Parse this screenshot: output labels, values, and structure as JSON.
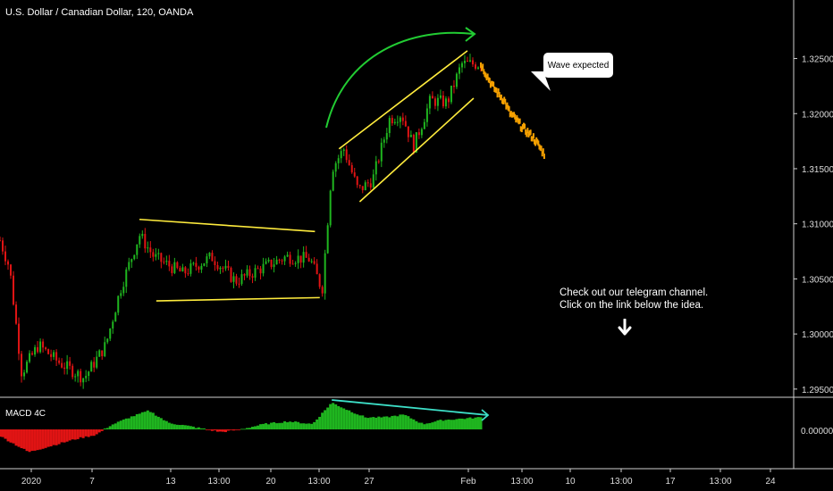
{
  "header": {
    "symbol_title": "U.S. Dollar / Canadian Dollar, 120, OANDA"
  },
  "macd": {
    "label": "MACD 4C",
    "zero_label": "0.00000"
  },
  "annotations": {
    "callout_text": "Wave expected",
    "telegram_line1": "Check out our telegram channel.",
    "telegram_line2": "Click on the link below the idea.",
    "arrow_icon": "arrow-down-icon"
  },
  "colors": {
    "background": "#000000",
    "bull": "#1fb51f",
    "bear": "#e01414",
    "projection": "#f5a000",
    "trendline": "#ffec3d",
    "curved_arrow": "#22cc33",
    "divergence_line": "#3de0c8",
    "separator": "#cfcfcf"
  },
  "chart_data": [
    {
      "type": "candlestick",
      "title": "U.S. Dollar / Canadian Dollar, 120, OANDA",
      "y_ticks": [
        "1.32500",
        "1.32000",
        "1.31500",
        "1.31000",
        "1.30500",
        "1.30000",
        "1.29500"
      ],
      "x_ticks": [
        "2020",
        "7",
        "13",
        "13:00",
        "20",
        "13:00",
        "27",
        "Feb",
        "13:00",
        "10",
        "13:00",
        "17",
        "13:00",
        "24"
      ],
      "ylim": [
        1.2945,
        1.3295
      ],
      "anchors": [
        {
          "t": 0.0,
          "price": 1.3085
        },
        {
          "t": 0.02,
          "price": 1.306
        },
        {
          "t": 0.045,
          "price": 1.2965
        },
        {
          "t": 0.08,
          "price": 1.299
        },
        {
          "t": 0.12,
          "price": 1.2975
        },
        {
          "t": 0.175,
          "price": 1.296
        },
        {
          "t": 0.22,
          "price": 1.299
        },
        {
          "t": 0.25,
          "price": 1.304
        },
        {
          "t": 0.29,
          "price": 1.309
        },
        {
          "t": 0.32,
          "price": 1.307
        },
        {
          "t": 0.38,
          "price": 1.3055
        },
        {
          "t": 0.44,
          "price": 1.307
        },
        {
          "t": 0.49,
          "price": 1.3048
        },
        {
          "t": 0.545,
          "price": 1.306
        },
        {
          "t": 0.595,
          "price": 1.307
        },
        {
          "t": 0.645,
          "price": 1.3068
        },
        {
          "t": 0.67,
          "price": 1.304
        },
        {
          "t": 0.69,
          "price": 1.315
        },
        {
          "t": 0.715,
          "price": 1.3168
        },
        {
          "t": 0.745,
          "price": 1.313
        },
        {
          "t": 0.775,
          "price": 1.314
        },
        {
          "t": 0.81,
          "price": 1.3195
        },
        {
          "t": 0.835,
          "price": 1.32
        },
        {
          "t": 0.86,
          "price": 1.317
        },
        {
          "t": 0.895,
          "price": 1.3212
        },
        {
          "t": 0.93,
          "price": 1.321
        },
        {
          "t": 0.96,
          "price": 1.3245
        },
        {
          "t": 1.0,
          "price": 1.3245
        }
      ],
      "projection": [
        1.3245,
        1.3235,
        1.3225,
        1.3218,
        1.3212,
        1.32,
        1.3195,
        1.3188,
        1.3183,
        1.3178,
        1.317,
        1.3162
      ],
      "channel_lines": [
        {
          "from_t": 0.29,
          "from_price": 1.3104,
          "to_t": 0.655,
          "to_price": 1.3093
        },
        {
          "from_t": 0.325,
          "from_price": 1.303,
          "to_t": 0.665,
          "to_price": 1.3033
        },
        {
          "from_t": 0.705,
          "from_price": 1.3168,
          "to_t": 0.972,
          "to_price": 1.3257
        },
        {
          "from_t": 0.748,
          "from_price": 1.312,
          "to_t": 0.985,
          "to_price": 1.3214
        }
      ]
    },
    {
      "type": "histogram",
      "title": "MACD 4C",
      "y_ticks": [
        "0.00000"
      ],
      "anchors": [
        {
          "t": 0.0,
          "v": -0.25
        },
        {
          "t": 0.03,
          "v": -0.55
        },
        {
          "t": 0.06,
          "v": -0.85
        },
        {
          "t": 0.11,
          "v": -0.6
        },
        {
          "t": 0.16,
          "v": -0.35
        },
        {
          "t": 0.2,
          "v": -0.2
        },
        {
          "t": 0.23,
          "v": 0.15
        },
        {
          "t": 0.27,
          "v": 0.45
        },
        {
          "t": 0.31,
          "v": 0.7
        },
        {
          "t": 0.35,
          "v": 0.25
        },
        {
          "t": 0.4,
          "v": 0.1
        },
        {
          "t": 0.46,
          "v": -0.1
        },
        {
          "t": 0.5,
          "v": 0.0
        },
        {
          "t": 0.55,
          "v": 0.2
        },
        {
          "t": 0.6,
          "v": 0.3
        },
        {
          "t": 0.65,
          "v": 0.2
        },
        {
          "t": 0.69,
          "v": 1.0
        },
        {
          "t": 0.72,
          "v": 0.75
        },
        {
          "t": 0.76,
          "v": 0.45
        },
        {
          "t": 0.8,
          "v": 0.45
        },
        {
          "t": 0.84,
          "v": 0.55
        },
        {
          "t": 0.88,
          "v": 0.2
        },
        {
          "t": 0.92,
          "v": 0.35
        },
        {
          "t": 1.0,
          "v": 0.45
        }
      ],
      "divergence_line": [
        {
          "t": 0.69,
          "v": 1.0
        },
        {
          "t": 1.0,
          "v": 0.5
        }
      ]
    }
  ]
}
